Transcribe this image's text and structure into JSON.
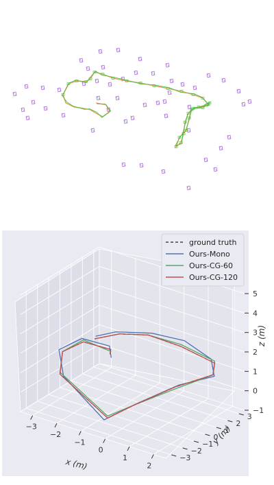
{
  "chart_data": [
    {
      "type": "scatter",
      "title": "",
      "description_colors": {
        "camera_frustum": "#9b59d0",
        "trajectory": "#e2a050",
        "keyframes": "#43c043"
      },
      "frustums": [
        [
          21,
          137
        ],
        [
          38,
          126
        ],
        [
          62,
          128
        ],
        [
          33,
          160
        ],
        [
          48,
          149
        ],
        [
          66,
          158
        ],
        [
          40,
          172
        ],
        [
          86,
          131
        ],
        [
          92,
          168
        ],
        [
          118,
          88
        ],
        [
          128,
          100
        ],
        [
          146,
          75
        ],
        [
          150,
          98
        ],
        [
          172,
          73
        ],
        [
          122,
          122
        ],
        [
          141,
          118
        ],
        [
          160,
          123
        ],
        [
          179,
          115
        ],
        [
          198,
          106
        ],
        [
          204,
          86
        ],
        [
          223,
          107
        ],
        [
          244,
          95
        ],
        [
          250,
          118
        ],
        [
          266,
          123
        ],
        [
          284,
          128
        ],
        [
          304,
          110
        ],
        [
          326,
          117
        ],
        [
          348,
          133
        ],
        [
          355,
          152
        ],
        [
          364,
          148
        ],
        [
          276,
          156
        ],
        [
          247,
          135
        ],
        [
          230,
          150
        ],
        [
          211,
          153
        ],
        [
          183,
          177
        ],
        [
          193,
          172
        ],
        [
          135,
          190
        ],
        [
          143,
          143
        ],
        [
          171,
          143
        ],
        [
          180,
          240
        ],
        [
          206,
          241
        ],
        [
          238,
          250
        ],
        [
          275,
          274
        ],
        [
          300,
          233
        ],
        [
          314,
          247
        ],
        [
          322,
          216
        ],
        [
          334,
          200
        ],
        [
          242,
          169
        ],
        [
          275,
          190
        ],
        [
          158,
          160
        ],
        [
          240,
          148
        ]
      ],
      "trajectory_path": [
        [
          92,
          138
        ],
        [
          100,
          122
        ],
        [
          112,
          118
        ],
        [
          125,
          119
        ],
        [
          132,
          115
        ],
        [
          138,
          105
        ],
        [
          150,
          108
        ],
        [
          165,
          114
        ],
        [
          185,
          118
        ],
        [
          205,
          121
        ],
        [
          225,
          125
        ],
        [
          245,
          129
        ],
        [
          265,
          133
        ],
        [
          282,
          138
        ],
        [
          296,
          143
        ],
        [
          304,
          152
        ],
        [
          296,
          157
        ],
        [
          282,
          158
        ],
        [
          275,
          165
        ],
        [
          270,
          178
        ],
        [
          268,
          195
        ],
        [
          264,
          208
        ],
        [
          257,
          214
        ],
        [
          262,
          200
        ],
        [
          272,
          190
        ],
        [
          276,
          172
        ],
        [
          280,
          160
        ],
        [
          290,
          156
        ],
        [
          302,
          153
        ],
        [
          306,
          150
        ]
      ],
      "trajectory_branch": [
        [
          92,
          138
        ],
        [
          96,
          150
        ],
        [
          108,
          156
        ],
        [
          122,
          158
        ],
        [
          132,
          160
        ],
        [
          140,
          165
        ],
        [
          150,
          170
        ],
        [
          160,
          163
        ],
        [
          155,
          153
        ],
        [
          140,
          150
        ]
      ]
    },
    {
      "type": "line",
      "title": "",
      "legend": {
        "placement": "top-right",
        "entries": [
          {
            "label": "ground truth",
            "color": "#444444",
            "dash": true
          },
          {
            "label": "Ours-Mono",
            "color": "#4c72b0",
            "dash": false
          },
          {
            "label": "Ours-CG-60",
            "color": "#55a868",
            "dash": false
          },
          {
            "label": "Ours-CG-120",
            "color": "#c44e52",
            "dash": false
          }
        ]
      },
      "axes": {
        "xlabel": "x (m)",
        "ylabel": "y (m)",
        "zlabel": "z (m)",
        "x_ticks": [
          "−3",
          "−2",
          "−1",
          "0",
          "1",
          "2"
        ],
        "y_ticks": [
          "−3",
          "−2",
          "−1",
          "0",
          "1",
          "2",
          "3"
        ],
        "z_ticks": [
          "−1",
          "0",
          "1",
          "2",
          "3",
          "4",
          "5"
        ],
        "xlim": [
          -3.5,
          2.5
        ],
        "ylim": [
          -3.5,
          3.5
        ],
        "zlim": [
          -1,
          5
        ],
        "grid": true
      },
      "series": [
        {
          "name": "ground truth",
          "x": [
            -3.0,
            -2.2,
            -1.2,
            0.1,
            1.5,
            1.8,
            0.8,
            -0.2,
            -0.6,
            -2.8,
            -3.3,
            -3.0,
            -2.0,
            -1.9
          ],
          "y": [
            2.0,
            2.5,
            2.9,
            3.0,
            3.0,
            2.2,
            1.0,
            -0.5,
            -2.0,
            -1.5,
            -0.2,
            1.0,
            1.3,
            1.0
          ],
          "z": [
            1.0,
            1.4,
            1.6,
            1.5,
            1.2,
            1.0,
            0.4,
            -0.4,
            -0.7,
            0.5,
            1.0,
            1.2,
            1.1,
            1.0
          ]
        },
        {
          "name": "Ours-Mono",
          "x": [
            -3.0,
            -2.3,
            -1.1,
            0.2,
            1.4,
            1.9,
            0.9,
            -0.1,
            -0.7,
            -2.7,
            -3.4,
            -3.1,
            -2.1,
            -1.8
          ],
          "y": [
            2.1,
            2.4,
            3.0,
            3.1,
            2.9,
            2.1,
            1.1,
            -0.4,
            -2.1,
            -1.4,
            -0.3,
            1.1,
            1.4,
            0.9
          ],
          "z": [
            1.1,
            1.5,
            1.7,
            1.8,
            1.4,
            1.0,
            0.5,
            -0.3,
            -0.8,
            0.4,
            1.1,
            1.3,
            1.2,
            0.9
          ]
        },
        {
          "name": "Ours-CG-60",
          "x": [
            -3.0,
            -2.2,
            -1.2,
            0.1,
            1.5,
            1.8,
            0.8,
            -0.2,
            -0.6,
            -2.8,
            -3.3,
            -3.0,
            -2.0,
            -1.9
          ],
          "y": [
            2.0,
            2.5,
            2.9,
            3.0,
            3.0,
            2.2,
            1.0,
            -0.5,
            -2.0,
            -1.5,
            -0.2,
            1.0,
            1.3,
            1.0
          ],
          "z": [
            1.0,
            1.4,
            1.6,
            1.6,
            1.3,
            1.0,
            0.3,
            -0.4,
            -0.6,
            0.6,
            1.0,
            1.3,
            1.0,
            1.0
          ]
        },
        {
          "name": "Ours-CG-120",
          "x": [
            -3.0,
            -2.2,
            -1.2,
            0.1,
            1.5,
            1.8,
            0.8,
            -0.2,
            -0.6,
            -2.8,
            -3.3,
            -3.0,
            -2.0,
            -1.9
          ],
          "y": [
            2.0,
            2.5,
            2.9,
            3.0,
            3.0,
            2.2,
            1.0,
            -0.5,
            -2.0,
            -1.5,
            -0.2,
            1.0,
            1.3,
            1.0
          ],
          "z": [
            1.0,
            1.4,
            1.6,
            1.5,
            1.2,
            1.0,
            0.4,
            -0.4,
            -0.7,
            0.5,
            1.0,
            1.2,
            1.1,
            1.0
          ]
        }
      ]
    }
  ]
}
